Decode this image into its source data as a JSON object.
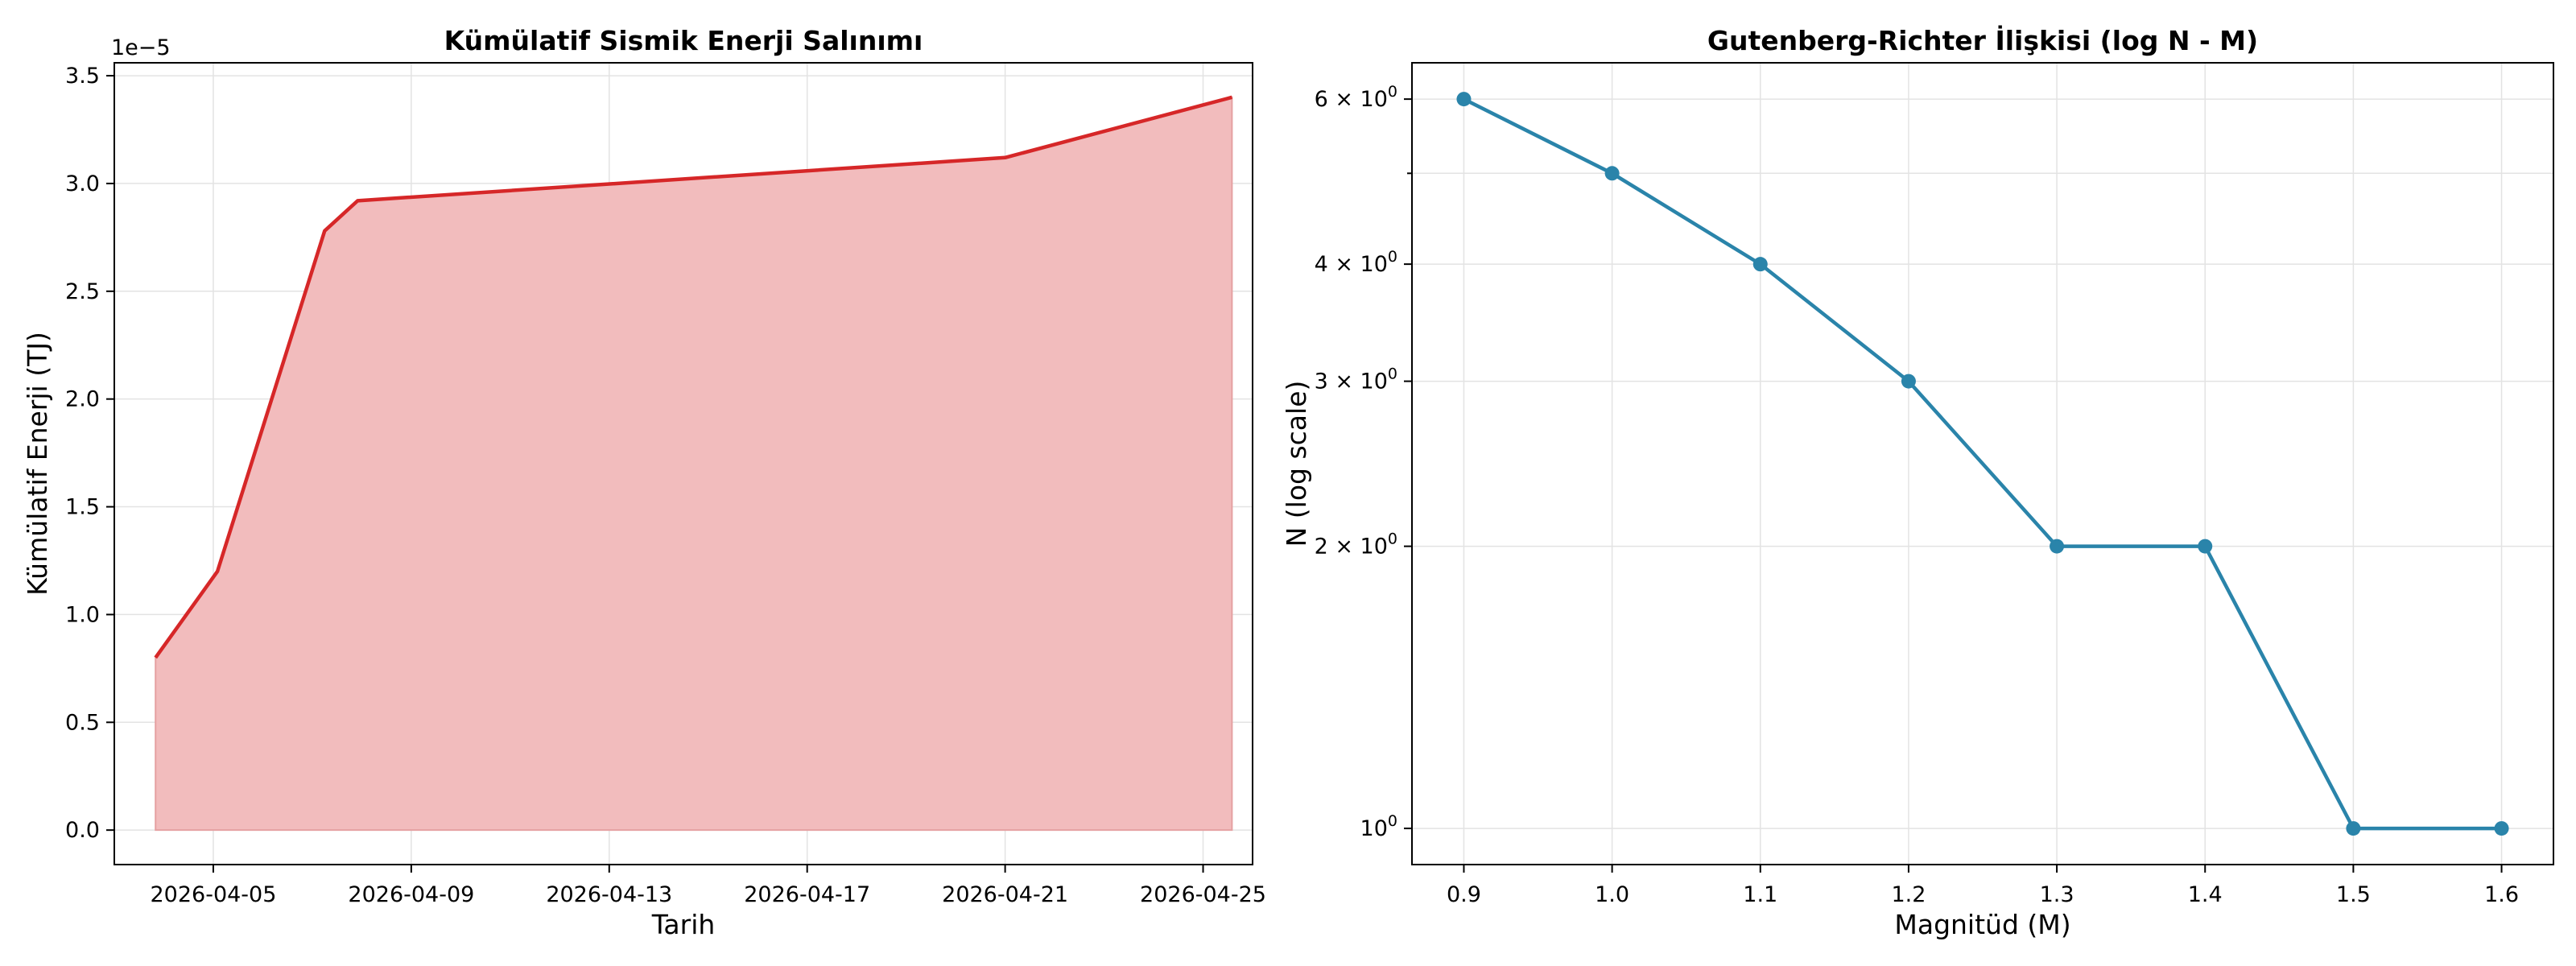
{
  "colors": {
    "energy_line": "#d62728",
    "energy_fill": "#f2bcbd",
    "gr_line": "#2a84aa"
  },
  "chart_data": [
    {
      "type": "area",
      "title": "Kümülatif Sismik Enerji Salınımı",
      "xlabel": "Tarih",
      "ylabel": "Kümülatif Enerji (TJ)",
      "y_offset_label": "1e−5",
      "y_scale_factor": 1e-05,
      "x": [
        "2026-04-03 20:00",
        "2026-04-05 02:00",
        "2026-04-07 06:00",
        "2026-04-07 22:00",
        "2026-04-21 00:00",
        "2026-04-25 14:00"
      ],
      "y": [
        8e-06,
        1.2e-05,
        2.78e-05,
        2.92e-05,
        3.12e-05,
        3.4e-05
      ],
      "xlim": [
        "2026-04-03",
        "2026-04-26"
      ],
      "ylim": [
        -1.6e-06,
        3.56e-05
      ],
      "x_ticks": [
        "2026-04-05",
        "2026-04-09",
        "2026-04-13",
        "2026-04-17",
        "2026-04-21",
        "2026-04-25"
      ],
      "y_ticks": [
        0.0,
        0.5,
        1.0,
        1.5,
        2.0,
        2.5,
        3.0,
        3.5
      ],
      "y_tick_labels": [
        "0.0",
        "0.5",
        "1.0",
        "1.5",
        "2.0",
        "2.5",
        "3.0",
        "3.5"
      ],
      "grid": true
    },
    {
      "type": "line",
      "title": "Gutenberg-Richter İlişkisi (log N - M)",
      "xlabel": "Magnitüd (M)",
      "ylabel": "N (log scale)",
      "y_scale": "log",
      "x": [
        0.9,
        1.0,
        1.1,
        1.2,
        1.3,
        1.4,
        1.5,
        1.6
      ],
      "y": [
        6,
        5,
        4,
        3,
        2,
        2,
        1,
        1
      ],
      "xlim": [
        0.865,
        1.635
      ],
      "ylim": [
        0.915,
        6.56
      ],
      "x_ticks": [
        0.9,
        1.0,
        1.1,
        1.2,
        1.3,
        1.4,
        1.5,
        1.6
      ],
      "x_tick_labels": [
        "0.9",
        "1.0",
        "1.1",
        "1.2",
        "1.3",
        "1.4",
        "1.5",
        "1.6"
      ],
      "y_ticks": [
        1,
        2,
        3,
        4,
        6
      ],
      "y_tick_labels": [
        {
          "base": "10",
          "exp": "0"
        },
        {
          "base": "2 × 10",
          "exp": "0"
        },
        {
          "base": "3 × 10",
          "exp": "0"
        },
        {
          "base": "4 × 10",
          "exp": "0"
        },
        {
          "base": "6 × 10",
          "exp": "0"
        }
      ],
      "y_minor_ticks": [
        5
      ],
      "grid": true
    }
  ]
}
